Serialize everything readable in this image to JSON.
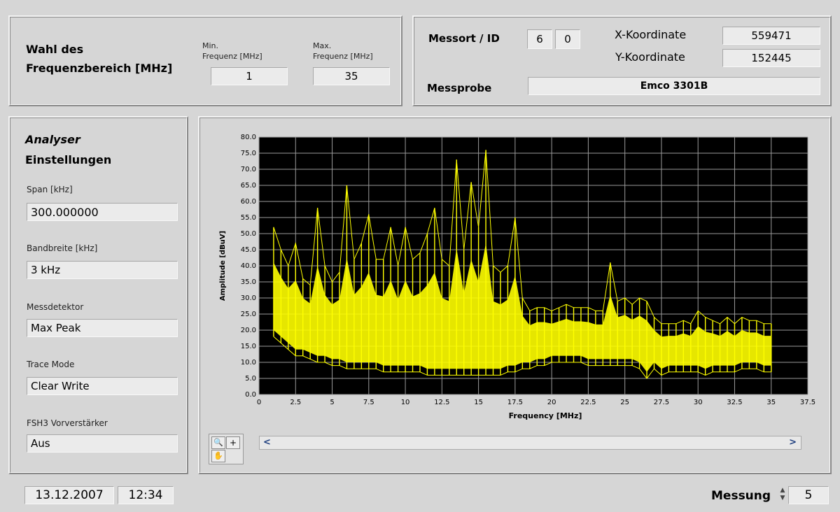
{
  "freq_range": {
    "title_line1": "Wahl des",
    "title_line2": "Frequenzbereich [MHz]",
    "min_label_line1": "Min.",
    "min_label_line2": "Frequenz [MHz]",
    "min_value": "1",
    "max_label_line1": "Max.",
    "max_label_line2": "Frequenz [MHz]",
    "max_value": "35"
  },
  "location": {
    "messort_label": "Messort / ID",
    "id1": "6",
    "id2": "0",
    "x_label": "X-Koordinate",
    "x_value": "559471",
    "y_label": "Y-Koordinate",
    "y_value": "152445",
    "probe_label": "Messprobe",
    "probe_value": "Emco 3301B"
  },
  "analyser": {
    "title_line1": "Analyser",
    "title_line2": "Einstellungen",
    "span_label": "Span [kHz]",
    "span_value": "300.000000",
    "bw_label": "Bandbreite [kHz]",
    "bw_value": "3 kHz",
    "det_label": "Messdetektor",
    "det_value": "Max Peak",
    "trace_label": "Trace Mode",
    "trace_value": "Clear Write",
    "amp_label": "FSH3 Vorverstärker",
    "amp_value": "Aus"
  },
  "footer": {
    "date": "13.12.2007",
    "time": "12:34",
    "messung_label": "Messung",
    "messung_value": "5"
  },
  "plot_controls": {
    "zoom_icon": "zoom-icon",
    "cursor_icon": "crosshair-icon",
    "pan_icon": "hand-icon",
    "scroll_left": "<",
    "scroll_right": ">"
  },
  "chart_data": {
    "type": "line",
    "xlabel": "Frequency [MHz]",
    "ylabel": "Amplitude [dBuV]",
    "xlim": [
      0,
      37.5
    ],
    "ylim": [
      0,
      80
    ],
    "x_ticks": [
      "0",
      "2.5",
      "5",
      "7.5",
      "10",
      "12.5",
      "15",
      "17.5",
      "20",
      "22.5",
      "25",
      "27.5",
      "30",
      "32.5",
      "35",
      "37.5"
    ],
    "y_ticks": [
      "0.0",
      "5.0",
      "10.0",
      "15.0",
      "20.0",
      "25.0",
      "30.0",
      "35.0",
      "40.0",
      "45.0",
      "50.0",
      "55.0",
      "60.0",
      "65.0",
      "70.0",
      "75.0",
      "80.0"
    ],
    "grid": true,
    "background": "#000000",
    "trace_color": "#ffff00",
    "series": [
      {
        "x": [
          1,
          1.5,
          2,
          2.5,
          3,
          3.5,
          4,
          4.5,
          5,
          5.5,
          6,
          6.5,
          7,
          7.5,
          8,
          8.5,
          9,
          9.5,
          10,
          10.5,
          11,
          11.5,
          12,
          12.5,
          13,
          13.5,
          14,
          14.5,
          15,
          15.5,
          16,
          16.5,
          17,
          17.5,
          18,
          18.5,
          19,
          19.5,
          20,
          20.5,
          21,
          21.5,
          22,
          22.5,
          23,
          23.5,
          24,
          24.5,
          25,
          25.5,
          26,
          26.5,
          27,
          27.5,
          28,
          28.5,
          29,
          29.5,
          30,
          30.5,
          31,
          31.5,
          32,
          32.5,
          33,
          33.5,
          34,
          34.5,
          35
        ],
        "y_max": [
          52,
          45,
          40,
          47,
          36,
          34,
          58,
          40,
          35,
          38,
          65,
          42,
          47,
          56,
          42,
          42,
          52,
          40,
          52,
          42,
          44,
          50,
          58,
          42,
          40,
          73,
          45,
          66,
          52,
          76,
          40,
          38,
          40,
          55,
          30,
          26,
          27,
          27,
          26,
          27,
          28,
          27,
          27,
          27,
          26,
          26,
          41,
          29,
          30,
          28,
          30,
          29,
          24,
          22,
          22,
          22,
          23,
          22,
          26,
          24,
          23,
          22,
          24,
          22,
          24,
          23,
          23,
          22,
          22
        ],
        "y_min": [
          18,
          16,
          14,
          12,
          12,
          11,
          10,
          10,
          9,
          9,
          8,
          8,
          8,
          8,
          8,
          7,
          7,
          7,
          7,
          7,
          7,
          6,
          6,
          6,
          6,
          6,
          6,
          6,
          6,
          6,
          6,
          6,
          7,
          7,
          8,
          8,
          9,
          9,
          10,
          10,
          10,
          10,
          10,
          9,
          9,
          9,
          9,
          9,
          9,
          9,
          8,
          5,
          8,
          6,
          7,
          7,
          7,
          7,
          7,
          6,
          7,
          7,
          7,
          7,
          8,
          8,
          8,
          7,
          7
        ]
      }
    ]
  }
}
